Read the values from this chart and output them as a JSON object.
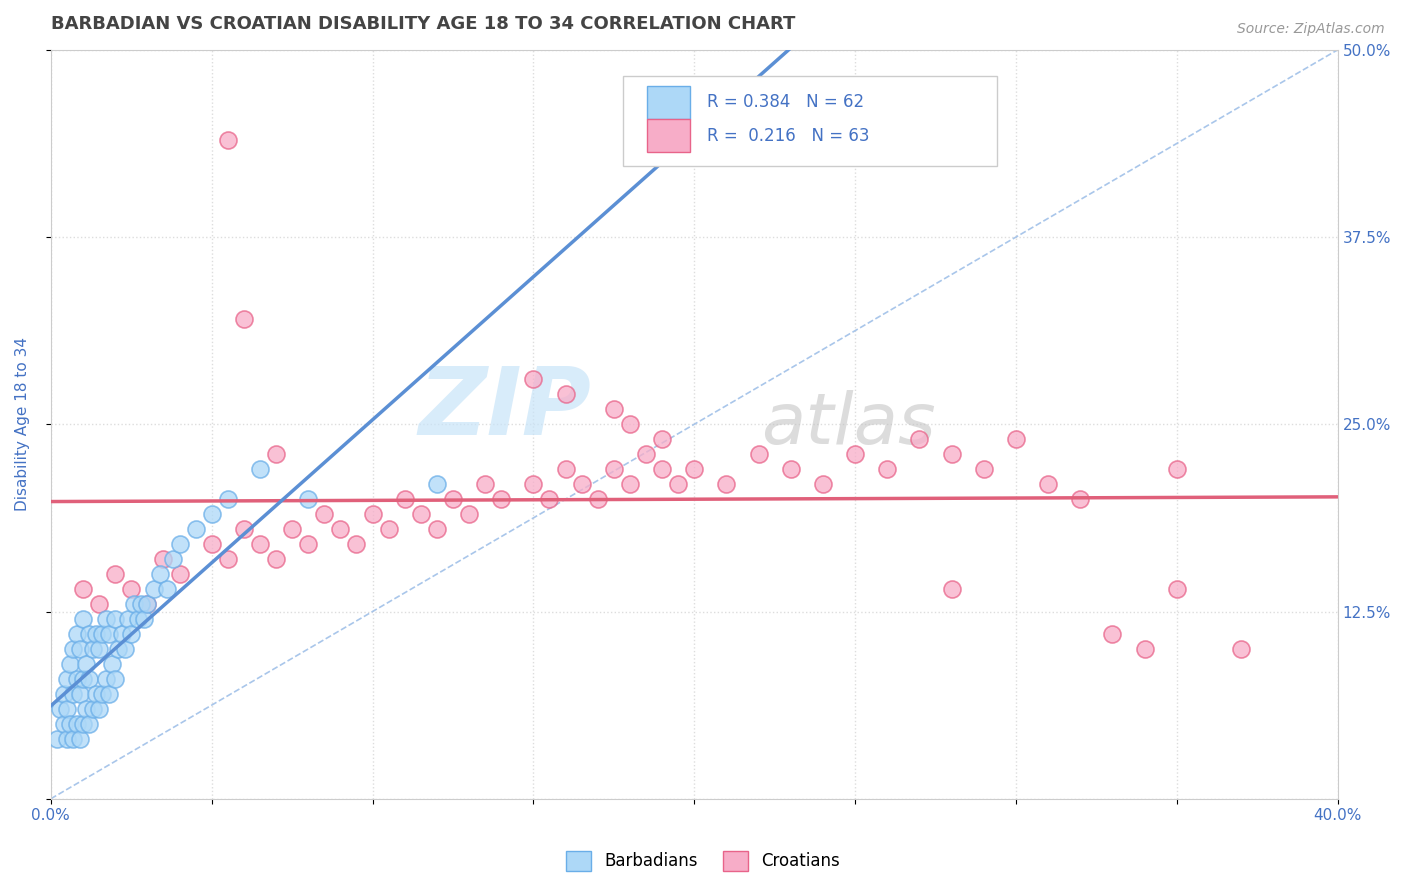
{
  "title": "BARBADIAN VS CROATIAN DISABILITY AGE 18 TO 34 CORRELATION CHART",
  "source": "Source: ZipAtlas.com",
  "ylabel": "Disability Age 18 to 34",
  "x_min": 0.0,
  "x_max": 0.4,
  "y_min": 0.0,
  "y_max": 0.5,
  "watermark_zip": "ZIP",
  "watermark_atlas": "atlas",
  "barbadian_color": "#add8f7",
  "barbadian_edge": "#6aaee8",
  "croatian_color": "#f7adc8",
  "croatian_edge": "#e8648a",
  "trend_barbadian": "#5b8fd4",
  "trend_croatian": "#e0607a",
  "diag_color": "#a0c0e8",
  "R_barbadian": 0.384,
  "N_barbadian": 62,
  "R_croatian": 0.216,
  "N_croatian": 63,
  "legend_label_1": "Barbadians",
  "legend_label_2": "Croatians",
  "background_color": "#ffffff",
  "plot_bg_color": "#ffffff",
  "grid_color": "#dddddd",
  "title_color": "#444444",
  "title_fontsize": 13,
  "axis_label_color": "#4472c4",
  "barbadian_x": [
    0.002,
    0.003,
    0.004,
    0.004,
    0.005,
    0.005,
    0.005,
    0.006,
    0.006,
    0.007,
    0.007,
    0.007,
    0.008,
    0.008,
    0.008,
    0.009,
    0.009,
    0.009,
    0.01,
    0.01,
    0.01,
    0.011,
    0.011,
    0.012,
    0.012,
    0.012,
    0.013,
    0.013,
    0.014,
    0.014,
    0.015,
    0.015,
    0.016,
    0.016,
    0.017,
    0.017,
    0.018,
    0.018,
    0.019,
    0.02,
    0.02,
    0.021,
    0.022,
    0.023,
    0.024,
    0.025,
    0.026,
    0.027,
    0.028,
    0.029,
    0.03,
    0.032,
    0.034,
    0.036,
    0.038,
    0.04,
    0.045,
    0.05,
    0.055,
    0.065,
    0.08,
    0.12
  ],
  "barbadian_y": [
    0.04,
    0.06,
    0.05,
    0.07,
    0.04,
    0.06,
    0.08,
    0.05,
    0.09,
    0.04,
    0.07,
    0.1,
    0.05,
    0.08,
    0.11,
    0.04,
    0.07,
    0.1,
    0.05,
    0.08,
    0.12,
    0.06,
    0.09,
    0.05,
    0.08,
    0.11,
    0.06,
    0.1,
    0.07,
    0.11,
    0.06,
    0.1,
    0.07,
    0.11,
    0.08,
    0.12,
    0.07,
    0.11,
    0.09,
    0.08,
    0.12,
    0.1,
    0.11,
    0.1,
    0.12,
    0.11,
    0.13,
    0.12,
    0.13,
    0.12,
    0.13,
    0.14,
    0.15,
    0.14,
    0.16,
    0.17,
    0.18,
    0.19,
    0.2,
    0.22,
    0.2,
    0.21
  ],
  "croatian_x": [
    0.01,
    0.015,
    0.02,
    0.025,
    0.03,
    0.035,
    0.04,
    0.05,
    0.055,
    0.06,
    0.065,
    0.07,
    0.075,
    0.08,
    0.085,
    0.09,
    0.095,
    0.1,
    0.105,
    0.11,
    0.115,
    0.12,
    0.125,
    0.13,
    0.135,
    0.14,
    0.15,
    0.155,
    0.16,
    0.165,
    0.17,
    0.175,
    0.18,
    0.185,
    0.19,
    0.195,
    0.2,
    0.21,
    0.22,
    0.23,
    0.24,
    0.25,
    0.26,
    0.27,
    0.28,
    0.29,
    0.3,
    0.31,
    0.32,
    0.33,
    0.34,
    0.35,
    0.055,
    0.06,
    0.15,
    0.16,
    0.175,
    0.18,
    0.19,
    0.28,
    0.35,
    0.37,
    0.07
  ],
  "croatian_y": [
    0.14,
    0.13,
    0.15,
    0.14,
    0.13,
    0.16,
    0.15,
    0.17,
    0.16,
    0.18,
    0.17,
    0.16,
    0.18,
    0.17,
    0.19,
    0.18,
    0.17,
    0.19,
    0.18,
    0.2,
    0.19,
    0.18,
    0.2,
    0.19,
    0.21,
    0.2,
    0.21,
    0.2,
    0.22,
    0.21,
    0.2,
    0.22,
    0.21,
    0.23,
    0.22,
    0.21,
    0.22,
    0.21,
    0.23,
    0.22,
    0.21,
    0.23,
    0.22,
    0.24,
    0.23,
    0.22,
    0.24,
    0.21,
    0.2,
    0.11,
    0.1,
    0.22,
    0.44,
    0.32,
    0.28,
    0.27,
    0.26,
    0.25,
    0.24,
    0.14,
    0.14,
    0.1,
    0.23
  ]
}
